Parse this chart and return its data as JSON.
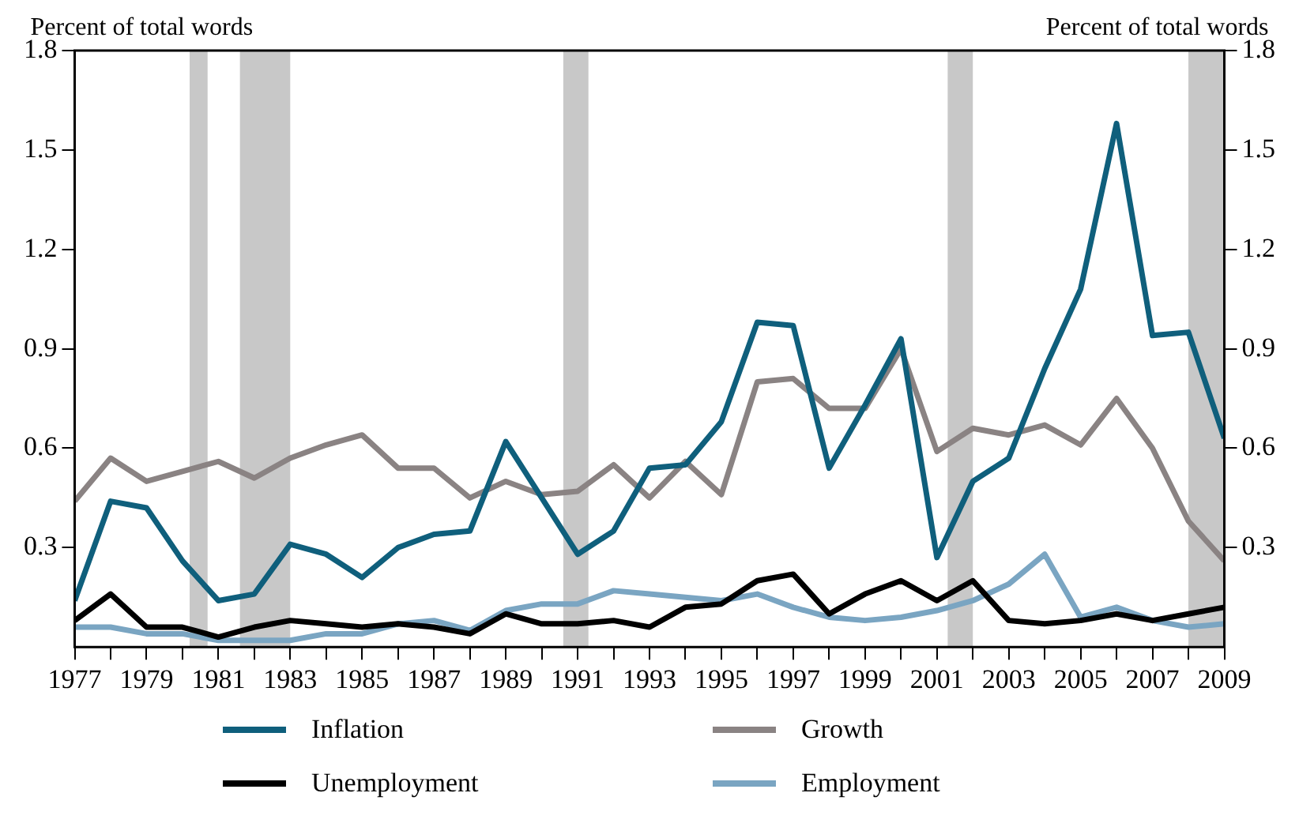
{
  "chart_data": {
    "type": "line",
    "ylabel": "Percent of total words",
    "y2label": "Percent of total words",
    "x": [
      1977,
      1978,
      1979,
      1980,
      1981,
      1982,
      1983,
      1984,
      1985,
      1986,
      1987,
      1988,
      1989,
      1990,
      1991,
      1992,
      1993,
      1994,
      1995,
      1996,
      1997,
      1998,
      1999,
      2000,
      2001,
      2002,
      2003,
      2004,
      2005,
      2006,
      2007,
      2008,
      2009
    ],
    "series": [
      {
        "name": "Inflation",
        "color": "#0f5f7c",
        "values": [
          0.14,
          0.44,
          0.42,
          0.26,
          0.14,
          0.16,
          0.31,
          0.28,
          0.21,
          0.3,
          0.34,
          0.35,
          0.62,
          0.45,
          0.28,
          0.35,
          0.54,
          0.55,
          0.68,
          0.98,
          0.97,
          0.54,
          0.73,
          0.93,
          0.27,
          0.5,
          0.57,
          0.84,
          1.08,
          1.58,
          0.94,
          0.95,
          0.63
        ]
      },
      {
        "name": "Growth",
        "color": "#8a8383",
        "values": [
          0.44,
          0.57,
          0.5,
          0.53,
          0.56,
          0.51,
          0.57,
          0.61,
          0.64,
          0.54,
          0.54,
          0.45,
          0.5,
          0.46,
          0.47,
          0.55,
          0.45,
          0.56,
          0.46,
          0.8,
          0.81,
          0.72,
          0.72,
          0.9,
          0.59,
          0.66,
          0.64,
          0.67,
          0.61,
          0.75,
          0.6,
          0.38,
          0.26
        ]
      },
      {
        "name": "Unemployment",
        "color": "#000000",
        "values": [
          0.08,
          0.16,
          0.06,
          0.06,
          0.03,
          0.06,
          0.08,
          0.07,
          0.06,
          0.07,
          0.06,
          0.04,
          0.1,
          0.07,
          0.07,
          0.08,
          0.06,
          0.12,
          0.13,
          0.2,
          0.22,
          0.1,
          0.16,
          0.2,
          0.14,
          0.2,
          0.08,
          0.07,
          0.08,
          0.1,
          0.08,
          0.1,
          0.12
        ]
      },
      {
        "name": "Employment",
        "color": "#7aa5c2",
        "values": [
          0.06,
          0.06,
          0.04,
          0.04,
          0.02,
          0.02,
          0.02,
          0.04,
          0.04,
          0.07,
          0.08,
          0.05,
          0.11,
          0.13,
          0.13,
          0.17,
          0.16,
          0.15,
          0.14,
          0.16,
          0.12,
          0.09,
          0.08,
          0.09,
          0.11,
          0.14,
          0.19,
          0.28,
          0.09,
          0.12,
          0.08,
          0.06,
          0.07
        ]
      }
    ],
    "xlim": [
      1977,
      2009
    ],
    "xticks": [
      1977,
      {
        "value": 1978,
        "label": null
      },
      1979,
      {
        "value": 1980,
        "label": null
      },
      1981,
      {
        "value": 1982,
        "label": null
      },
      1983,
      {
        "value": 1984,
        "label": null
      },
      1985,
      {
        "value": 1986,
        "label": null
      },
      1987,
      {
        "value": 1988,
        "label": null
      },
      1989,
      {
        "value": 1990,
        "label": null
      },
      1991,
      {
        "value": 1992,
        "label": null
      },
      1993,
      {
        "value": 1994,
        "label": null
      },
      1995,
      {
        "value": 1996,
        "label": null
      },
      1997,
      {
        "value": 1998,
        "label": null
      },
      1999,
      {
        "value": 2000,
        "label": null
      },
      2001,
      {
        "value": 2002,
        "label": null
      },
      2003,
      {
        "value": 2004,
        "label": null
      },
      2005,
      {
        "value": 2006,
        "label": null
      },
      2007,
      {
        "value": 2008,
        "label": null
      },
      2009
    ],
    "ylim": [
      0,
      1.8
    ],
    "yticks": [
      0.3,
      0.6,
      0.9,
      1.2,
      1.5,
      1.8
    ],
    "y2lim": [
      0,
      1.8
    ],
    "y2ticks": [
      0.3,
      0.6,
      0.9,
      1.2,
      1.5,
      1.8
    ],
    "bands": [
      {
        "axis": "x",
        "from": 1980.2,
        "to": 1980.7,
        "color": "#c8c8c8"
      },
      {
        "axis": "x",
        "from": 1981.6,
        "to": 1983.0,
        "color": "#c8c8c8"
      },
      {
        "axis": "x",
        "from": 1990.6,
        "to": 1991.3,
        "color": "#c8c8c8"
      },
      {
        "axis": "x",
        "from": 2001.3,
        "to": 2002.0,
        "color": "#c8c8c8"
      },
      {
        "axis": "x",
        "from": 2008.0,
        "to": 2009.0,
        "color": "#c8c8c8"
      }
    ],
    "grid": false,
    "legend": "bottom",
    "marker": "none",
    "line_style": "solid"
  }
}
